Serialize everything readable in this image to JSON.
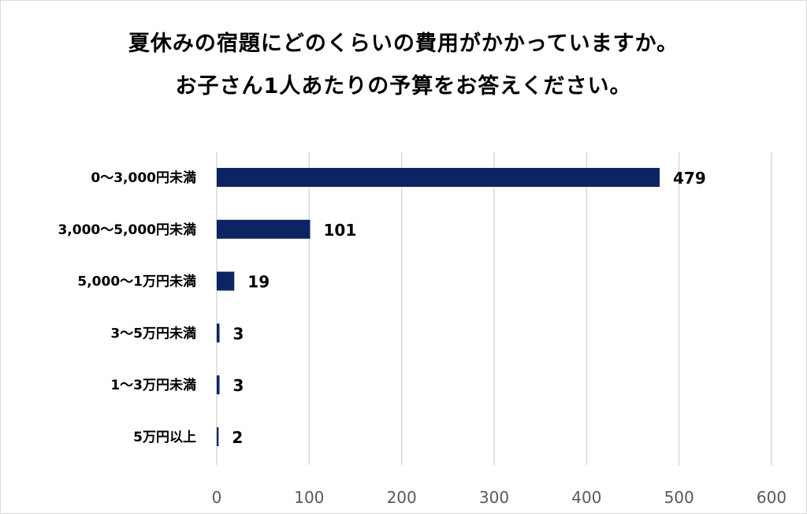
{
  "chart_data": {
    "type": "bar",
    "orientation": "horizontal",
    "title_lines": [
      "夏休みの宿題にどのくらいの費用がかかっていますか。",
      "お子さん1人あたりの予算をお答えください。"
    ],
    "categories": [
      "0〜3,000円未満",
      "3,000〜5,000円未満",
      "5,000〜1万円未満",
      "3〜5万円未満",
      "1〜3万円未満",
      "5万円以上"
    ],
    "values": [
      479,
      101,
      19,
      3,
      3,
      2
    ],
    "value_labels": [
      "479",
      "101",
      "19",
      "3",
      "3",
      "2"
    ],
    "xlim": [
      0,
      600
    ],
    "x_ticks": [
      0,
      100,
      200,
      300,
      400,
      500,
      600
    ],
    "x_tick_labels": [
      "0",
      "100",
      "200",
      "300",
      "400",
      "500",
      "600"
    ],
    "grid": "vertical",
    "legend": "none",
    "colors": {
      "bar": "#0c2461",
      "grid": "#d9d9d9",
      "tick_text": "#595959",
      "border": "#d9d9d9"
    }
  }
}
